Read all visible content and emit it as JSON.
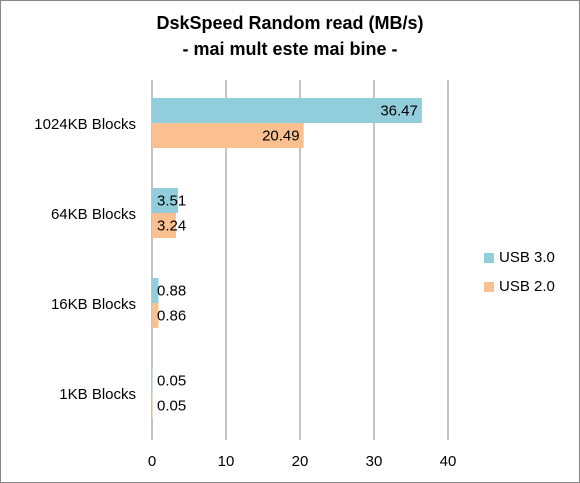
{
  "chart_data": {
    "type": "bar",
    "orientation": "horizontal",
    "title": "DskSpeed Random read (MB/s)",
    "subtitle": "- mai mult este mai bine -",
    "categories": [
      "1024KB Blocks",
      "64KB Blocks",
      "16KB Blocks",
      "1KB Blocks"
    ],
    "series": [
      {
        "name": "USB 3.0",
        "color": "#92cddc",
        "values": [
          36.47,
          3.51,
          0.88,
          0.05
        ]
      },
      {
        "name": "USB 2.0",
        "color": "#fac090",
        "values": [
          20.49,
          3.24,
          0.86,
          0.05
        ]
      }
    ],
    "xlim": [
      0,
      40
    ],
    "xticks": [
      0,
      10,
      20,
      30,
      40
    ],
    "grid": true,
    "legend": "right"
  }
}
